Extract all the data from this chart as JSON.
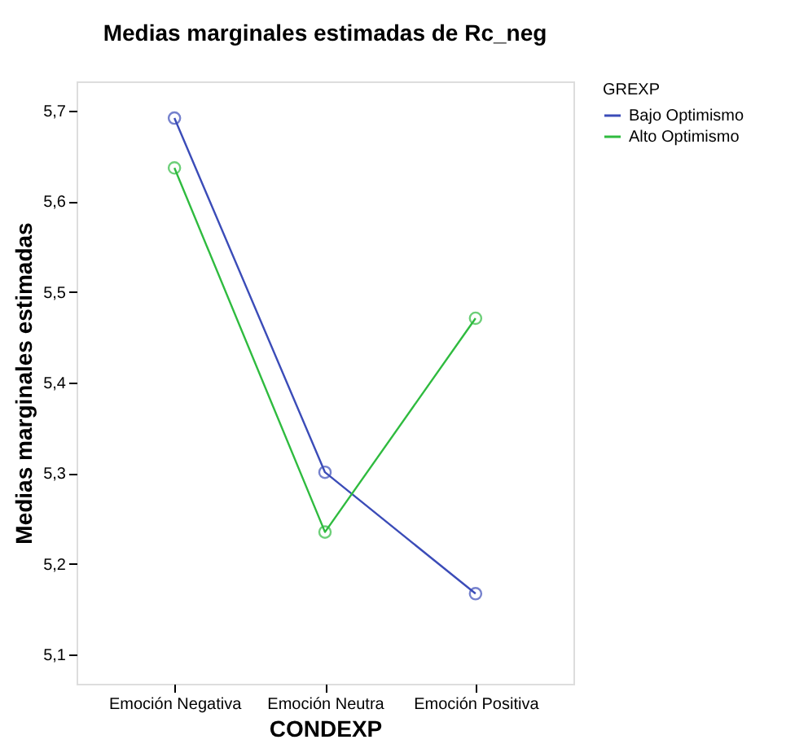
{
  "chart_data": {
    "type": "line",
    "title": "Medias marginales estimadas de Rc_neg",
    "xlabel": "CONDEXP",
    "ylabel": "Medias marginales estimadas",
    "legend_title": "GREXP",
    "categories": [
      "Emoción Negativa",
      "Emoción Neutra",
      "Emoción Positiva"
    ],
    "series": [
      {
        "name": "Bajo Optimismo",
        "color": "#3b4cb8",
        "values": [
          5.692,
          5.301,
          5.167
        ]
      },
      {
        "name": "Alto Optimismo",
        "color": "#2fbb3f",
        "values": [
          5.637,
          5.235,
          5.471
        ]
      }
    ],
    "ylim": [
      5.0675,
      5.7325
    ],
    "yticks": [
      {
        "value": 5.1,
        "label": "5,1"
      },
      {
        "value": 5.2,
        "label": "5,2"
      },
      {
        "value": 5.3,
        "label": "5,3"
      },
      {
        "value": 5.4,
        "label": "5,4"
      },
      {
        "value": 5.5,
        "label": "5,5"
      },
      {
        "value": 5.6,
        "label": "5,6"
      },
      {
        "value": 5.7,
        "label": "5,7"
      }
    ],
    "grid": false,
    "legend": "right",
    "marker": "circle",
    "line_style": "solid"
  }
}
